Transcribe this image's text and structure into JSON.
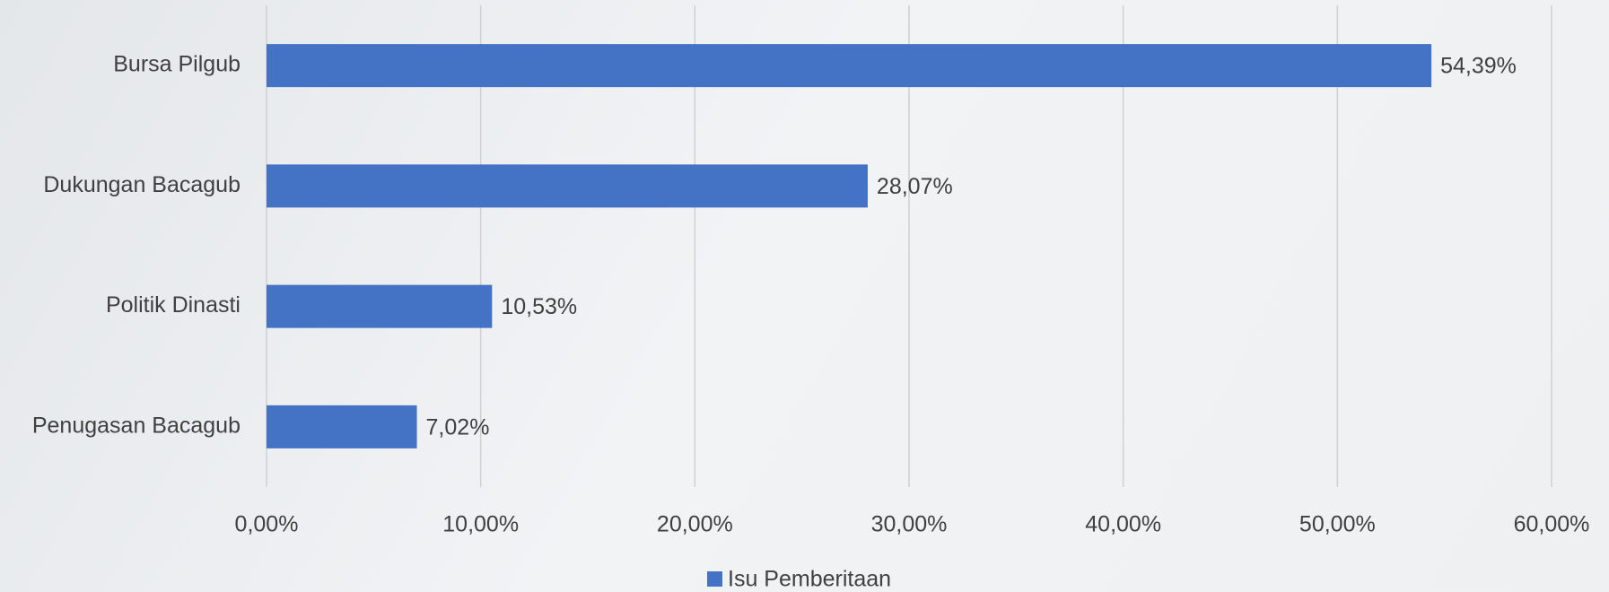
{
  "chart_data": {
    "type": "barh",
    "categories": [
      "Bursa Pilgub",
      "Dukungan Bacagub",
      "Politik Dinasti",
      "Penugasan Bacagub"
    ],
    "series": [
      {
        "name": "Isu Pemberitaan",
        "color": "#4472c4",
        "values": [
          54.39,
          28.07,
          10.53,
          7.02
        ],
        "value_labels": [
          "54,39%",
          "28,07%",
          "10,53%",
          "7,02%"
        ]
      }
    ],
    "xlim": [
      0,
      60
    ],
    "xticks": [
      {
        "value": 0,
        "label": "0,00%"
      },
      {
        "value": 10,
        "label": "10,00%"
      },
      {
        "value": 20,
        "label": "20,00%"
      },
      {
        "value": 30,
        "label": "30,00%"
      },
      {
        "value": 40,
        "label": "40,00%"
      },
      {
        "value": 50,
        "label": "50,00%"
      },
      {
        "value": 60,
        "label": "60,00%"
      }
    ],
    "grid": true,
    "legend": "bottom"
  }
}
